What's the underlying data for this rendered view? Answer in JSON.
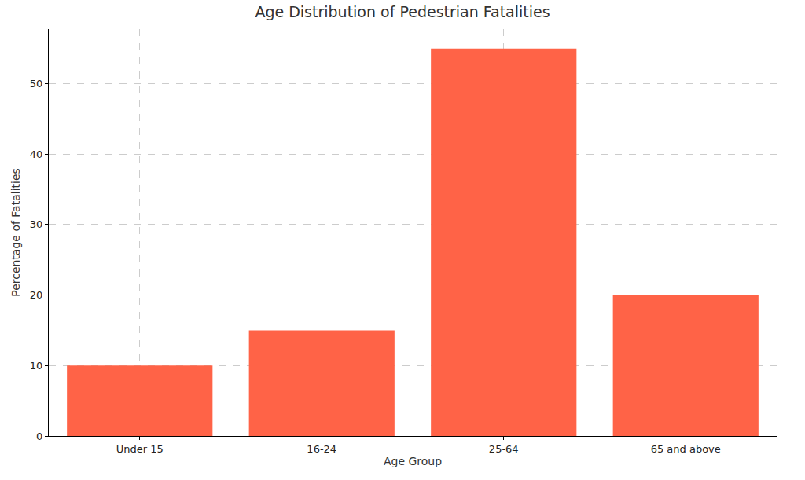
{
  "chart_data": {
    "type": "bar",
    "title": "Age Distribution of Pedestrian Fatalities",
    "x_label": "Age Group",
    "y_label": "Percentage of Fatalities",
    "categories": [
      "Under 15",
      "16-24",
      "25-64",
      "65 and above"
    ],
    "values": [
      10,
      15,
      55,
      20
    ],
    "color": "#ff6347",
    "ylim": [
      0,
      57.75
    ],
    "yticks": [
      0,
      10,
      20,
      30,
      40,
      50
    ],
    "grid": true
  }
}
